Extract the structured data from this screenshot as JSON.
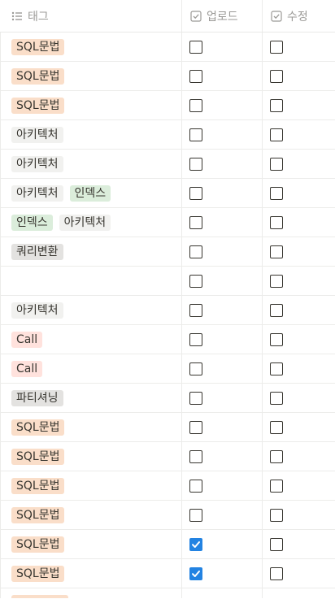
{
  "header": {
    "tags_label": "태그",
    "upload_label": "업로드",
    "edit_label": "수정",
    "icon_tags": "list-icon",
    "icon_upload": "checkbox-icon",
    "icon_edit": "checkbox-icon"
  },
  "colors": {
    "sql": "#fadec9",
    "arch": "#f1f1ef",
    "index": "#dbeddb",
    "query": "#e3e2e0",
    "call": "#ffe2dd",
    "partition": "#e3e2e0",
    "check_blue": "#2383e2"
  },
  "rows": [
    {
      "tags": [
        {
          "label": "SQL문법",
          "kind": "sql"
        }
      ],
      "upload": false,
      "edit": false
    },
    {
      "tags": [
        {
          "label": "SQL문법",
          "kind": "sql"
        }
      ],
      "upload": false,
      "edit": false
    },
    {
      "tags": [
        {
          "label": "SQL문법",
          "kind": "sql"
        }
      ],
      "upload": false,
      "edit": false
    },
    {
      "tags": [
        {
          "label": "아키텍처",
          "kind": "arch"
        }
      ],
      "upload": false,
      "edit": false
    },
    {
      "tags": [
        {
          "label": "아키텍처",
          "kind": "arch"
        }
      ],
      "upload": false,
      "edit": false
    },
    {
      "tags": [
        {
          "label": "아키텍처",
          "kind": "arch"
        },
        {
          "label": "인덱스",
          "kind": "index"
        }
      ],
      "upload": false,
      "edit": false
    },
    {
      "tags": [
        {
          "label": "인덱스",
          "kind": "index"
        },
        {
          "label": "아키텍처",
          "kind": "arch"
        }
      ],
      "upload": false,
      "edit": false
    },
    {
      "tags": [
        {
          "label": "쿼리변환",
          "kind": "query"
        }
      ],
      "upload": false,
      "edit": false
    },
    {
      "tags": [],
      "upload": false,
      "edit": false
    },
    {
      "tags": [
        {
          "label": "아키텍처",
          "kind": "arch"
        }
      ],
      "upload": false,
      "edit": false
    },
    {
      "tags": [
        {
          "label": "Call",
          "kind": "call"
        }
      ],
      "upload": false,
      "edit": false
    },
    {
      "tags": [
        {
          "label": "Call",
          "kind": "call"
        }
      ],
      "upload": false,
      "edit": false
    },
    {
      "tags": [
        {
          "label": "파티셔닝",
          "kind": "partition"
        }
      ],
      "upload": false,
      "edit": false
    },
    {
      "tags": [
        {
          "label": "SQL문법",
          "kind": "sql"
        }
      ],
      "upload": false,
      "edit": false
    },
    {
      "tags": [
        {
          "label": "SQL문법",
          "kind": "sql"
        }
      ],
      "upload": false,
      "edit": false
    },
    {
      "tags": [
        {
          "label": "SQL문법",
          "kind": "sql"
        }
      ],
      "upload": false,
      "edit": false
    },
    {
      "tags": [
        {
          "label": "SQL문법",
          "kind": "sql"
        }
      ],
      "upload": false,
      "edit": false
    },
    {
      "tags": [
        {
          "label": "SQL문법",
          "kind": "sql"
        }
      ],
      "upload": true,
      "edit": false
    },
    {
      "tags": [
        {
          "label": "SQL문법",
          "kind": "sql"
        }
      ],
      "upload": true,
      "edit": false
    }
  ]
}
